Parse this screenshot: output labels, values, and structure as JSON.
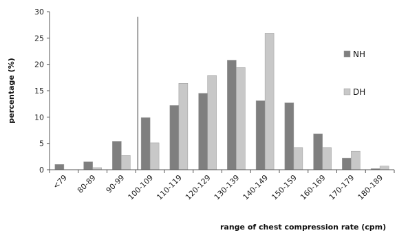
{
  "chart_data": {
    "type": "bar",
    "xlabel": "range of chest compression rate (cpm)",
    "ylabel": "percentage (%)",
    "ylim": [
      0,
      30
    ],
    "yticks": [
      0,
      5,
      10,
      15,
      20,
      25,
      30
    ],
    "grid": false,
    "legend_position": "right",
    "categories": [
      "<79",
      "80-89",
      "90-99",
      "100-109",
      "110-119",
      "120-129",
      "130-139",
      "140-149",
      "150-159",
      "160-169",
      "170-179",
      "180-189"
    ],
    "series": [
      {
        "name": "NH",
        "color": "#7f7f7f",
        "values": [
          1.0,
          1.5,
          5.4,
          9.9,
          12.2,
          14.5,
          20.8,
          13.1,
          12.7,
          6.8,
          2.2,
          0.2
        ]
      },
      {
        "name": "DH",
        "color": "#c8c8c8",
        "values": [
          0.0,
          0.4,
          2.7,
          5.1,
          16.4,
          17.9,
          19.4,
          25.9,
          4.2,
          4.2,
          3.5,
          0.7
        ]
      }
    ],
    "reference_line_category": "100-109",
    "reference_line_top": 29
  }
}
